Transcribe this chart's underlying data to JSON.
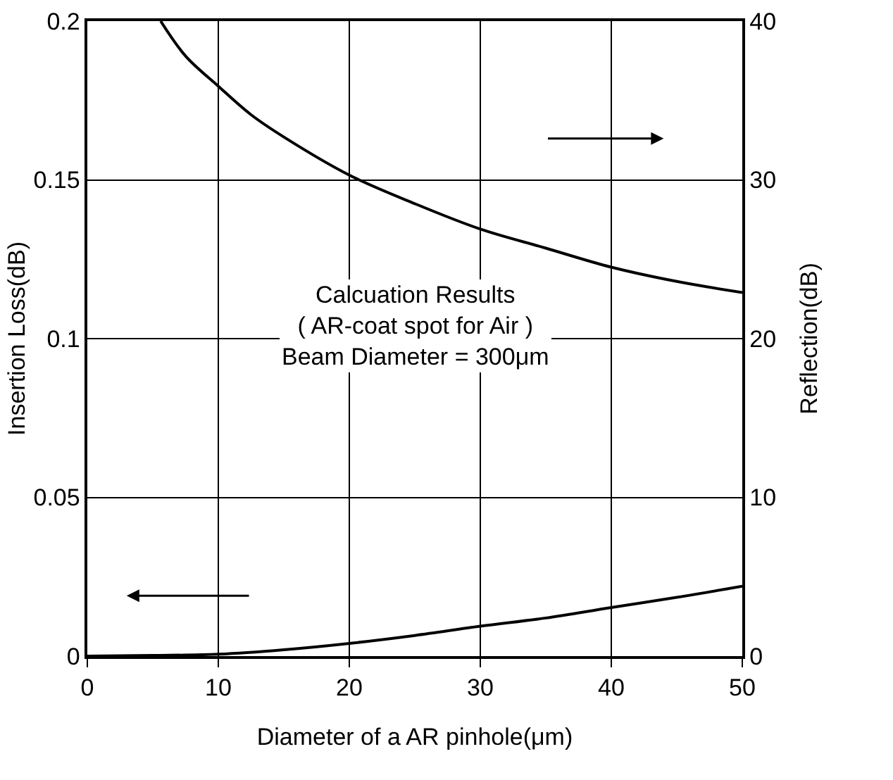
{
  "chart_data": {
    "type": "line",
    "xlabel": "Diameter of a AR pinhole(μm)",
    "ylabel": "Insertion Loss(dB)",
    "y2label": "Reflection(dB)",
    "xlim": [
      0,
      50
    ],
    "xticks": [
      0,
      10,
      20,
      30,
      40,
      50
    ],
    "ylim": [
      0,
      0.2
    ],
    "yticks": [
      0,
      0.05,
      0.1,
      0.15,
      0.2
    ],
    "y2lim": [
      0,
      40
    ],
    "y2ticks": [
      0,
      10,
      20,
      30,
      40
    ],
    "grid": true,
    "marker": "none",
    "line_style": "solid",
    "annotations": [
      "Calcuation Results\n( AR-coat spot for Air )\nBeam Diameter = 300μm"
    ],
    "series": [
      {
        "color": "#000000",
        "axis": "y2",
        "x": [
          5.6,
          7.5,
          10,
          12.5,
          15,
          20,
          25,
          30,
          35,
          40,
          45,
          50
        ],
        "values": [
          40,
          37.8,
          35.9,
          34.1,
          32.7,
          30.3,
          28.5,
          26.9,
          25.7,
          24.5,
          23.6,
          22.9
        ]
      },
      {
        "color": "#000000",
        "axis": "y",
        "x": [
          0,
          5,
          10,
          15,
          20,
          25,
          30,
          35,
          40,
          45,
          50
        ],
        "values": [
          0,
          0.0002,
          0.0006,
          0.002,
          0.004,
          0.0065,
          0.0094,
          0.012,
          0.0153,
          0.0185,
          0.022
        ]
      }
    ]
  }
}
